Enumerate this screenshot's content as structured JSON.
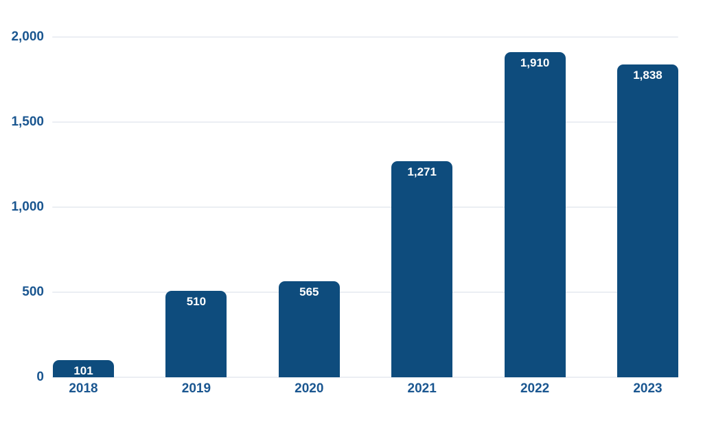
{
  "chart_data": {
    "type": "bar",
    "title": "",
    "xlabel": "",
    "ylabel": "",
    "categories": [
      "2018",
      "2019",
      "2020",
      "2021",
      "2022",
      "2023"
    ],
    "values": [
      101,
      510,
      565,
      1271,
      1910,
      1838
    ],
    "value_labels": [
      "101",
      "510",
      "565",
      "1,271",
      "1,910",
      "1,838"
    ],
    "ylim": [
      0,
      2000
    ],
    "yticks": [
      0,
      500,
      1000,
      1500,
      2000
    ],
    "ytick_labels": [
      "0",
      "500",
      "1,000",
      "1,500",
      "2,000"
    ],
    "grid": true,
    "legend": "none",
    "colors": {
      "bar_fill": "#0e4c7d",
      "axis_text": "#1a5690",
      "value_label_text": "#ffffff",
      "gridline": "#ebeef3",
      "background": "#ffffff"
    }
  }
}
